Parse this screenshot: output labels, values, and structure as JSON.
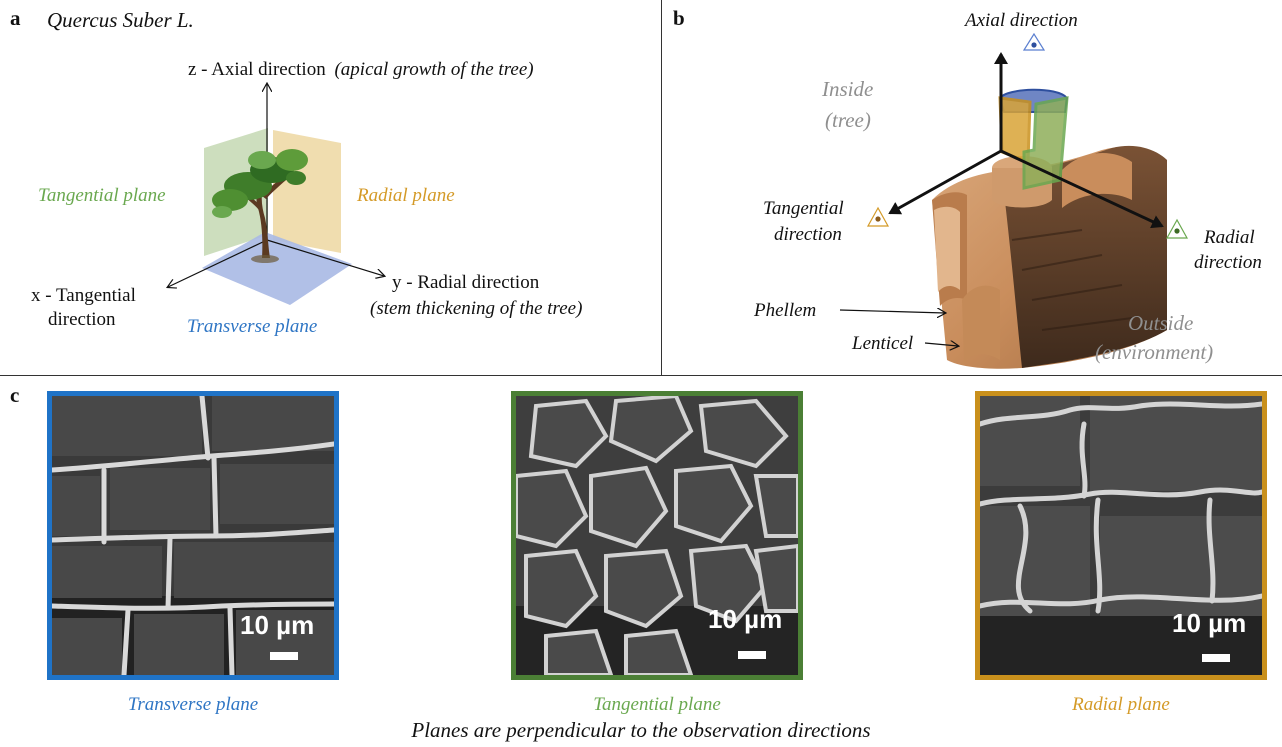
{
  "colors": {
    "transverse": "#2e75c4",
    "tangential": "#6aa84f",
    "radial": "#d49a27",
    "frame_transverse": "#1f73c7",
    "frame_tangential": "#4b7f35",
    "frame_radial": "#c9901c",
    "grey_text": "#8f8f8f"
  },
  "panel_a": {
    "letter": "a",
    "title": "Quercus Suber L.",
    "z_axis": "z - Axial direction",
    "z_note": "(apical growth of the tree)",
    "tangential_plane": "Tangential plane",
    "radial_plane": "Radial plane",
    "x_axis_line1": "x - Tangential",
    "x_axis_line2": "direction",
    "transverse_plane": "Transverse plane",
    "y_axis": "y - Radial direction",
    "y_note": "(stem thickening of the tree)"
  },
  "panel_b": {
    "letter": "b",
    "axial_direction": "Axial direction",
    "inside_line1": "Inside",
    "inside_line2": "(tree)",
    "tangential_dir_line1": "Tangential",
    "tangential_dir_line2": "direction",
    "radial_dir_line1": "Radial",
    "radial_dir_line2": "direction",
    "phellem": "Phellem",
    "lenticel": "Lenticel",
    "outside_line1": "Outside",
    "outside_line2": "(environment)"
  },
  "panel_c": {
    "letter": "c",
    "images": [
      {
        "caption": "Transverse plane",
        "scale": "10 µm"
      },
      {
        "caption": "Tangential plane",
        "scale": "10 µm"
      },
      {
        "caption": "Radial plane",
        "scale": "10 µm"
      }
    ],
    "footer": "Planes are perpendicular to the observation directions"
  }
}
